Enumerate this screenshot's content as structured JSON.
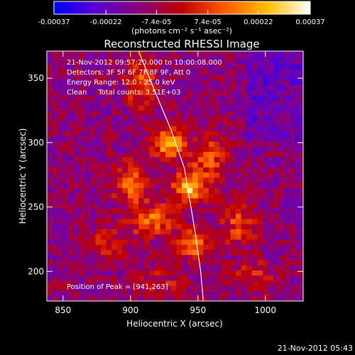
{
  "chart_data": {
    "type": "heatmap",
    "title": "Reconstructed RHESSI Image",
    "xlabel": "Heliocentric X (arcsec)",
    "ylabel": "Heliocentric Y (arcsec)",
    "xlim": [
      838,
      1028
    ],
    "ylim": [
      177,
      371
    ],
    "xticks": [
      850,
      900,
      950,
      1000
    ],
    "yticks": [
      200,
      250,
      300,
      350
    ],
    "colorbar": {
      "label": "(photons cm⁻² s⁻¹ asec⁻²)",
      "range": [
        -0.00037,
        0.00037
      ],
      "tick_labels": [
        "-0.00037",
        "-0.00022",
        "-7.4e-05",
        "7.4e-05",
        "0.00022",
        "0.00037"
      ],
      "colors": [
        "#0000ff",
        "#5a00d0",
        "#8a007a",
        "#c00000",
        "#ff5a00",
        "#ffc000",
        "#ffffff"
      ]
    },
    "info_lines": [
      "21-Nov-2012 09:57:20.000 to 10:00:08.000",
      "Detectors: 3F 5F 6F 7F 8F 9F, Att 0",
      "Energy Range: 12.0 - 25.0 keV",
      "Clean     Total counts: 3.51E+03"
    ],
    "peak_label": "Position of Peak = [941,263]",
    "peak": [
      941,
      263
    ],
    "limb_curve": [
      [
        906,
        371
      ],
      [
        918,
        340
      ],
      [
        930,
        310
      ],
      [
        940,
        280
      ],
      [
        944,
        255
      ],
      [
        948,
        230
      ],
      [
        952,
        200
      ],
      [
        954,
        177
      ]
    ],
    "sources": [
      {
        "x": 926,
        "y": 298,
        "amp": 0.00036,
        "sx": 9,
        "sy": 8
      },
      {
        "x": 941,
        "y": 263,
        "amp": 0.00037,
        "sx": 8,
        "sy": 8
      },
      {
        "x": 898,
        "y": 266,
        "amp": 0.00022,
        "sx": 10,
        "sy": 12
      },
      {
        "x": 956,
        "y": 286,
        "amp": 0.0002,
        "sx": 10,
        "sy": 14
      },
      {
        "x": 914,
        "y": 238,
        "amp": 0.00025,
        "sx": 12,
        "sy": 9
      },
      {
        "x": 944,
        "y": 220,
        "amp": 0.0003,
        "sx": 8,
        "sy": 8
      },
      {
        "x": 978,
        "y": 236,
        "amp": 0.00018,
        "sx": 10,
        "sy": 14
      },
      {
        "x": 905,
        "y": 345,
        "amp": 0.00022,
        "sx": 8,
        "sy": 14
      },
      {
        "x": 880,
        "y": 218,
        "amp": 0.00015,
        "sx": 10,
        "sy": 10
      },
      {
        "x": 990,
        "y": 195,
        "amp": 0.00012,
        "sx": 12,
        "sy": 10
      },
      {
        "x": 920,
        "y": 190,
        "amp": 0.00012,
        "sx": 14,
        "sy": 8
      }
    ]
  },
  "footer": {
    "timestamp": "21-Nov-2012 05:43"
  }
}
